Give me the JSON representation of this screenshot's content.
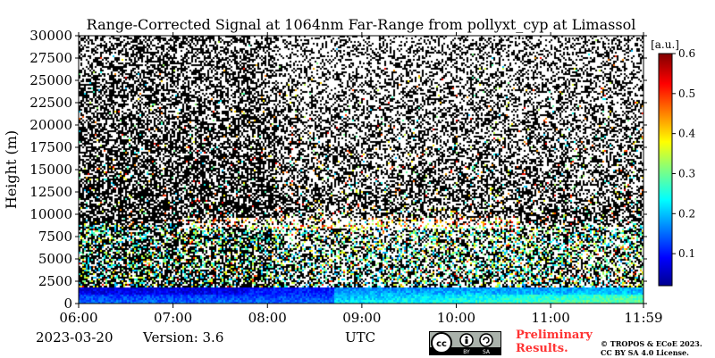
{
  "chart_data": {
    "type": "heatmap",
    "title": "Range-Corrected Signal at 1064nm Far-Range from pollyxt_cyp at Limassol",
    "xlabel": "",
    "ylabel": "Height (m)",
    "x_ticks": [
      "06:00",
      "07:00",
      "08:00",
      "09:00",
      "10:00",
      "11:00",
      "11:59"
    ],
    "x_range": [
      "06:00",
      "11:59"
    ],
    "y_ticks": [
      0,
      2500,
      5000,
      7500,
      10000,
      12500,
      15000,
      17500,
      20000,
      22500,
      25000,
      27500,
      30000
    ],
    "ylim": [
      0,
      30000
    ],
    "colorbar": {
      "unit": "[a.u.]",
      "ticks": [
        0.1,
        0.2,
        0.3,
        0.4,
        0.5,
        0.6
      ],
      "range": [
        0.02,
        0.6
      ],
      "colormap": "jet"
    },
    "features": {
      "cloud_layer_height_m": [
        8500,
        9800
      ],
      "cloud_layer_time": [
        "07:05",
        "10:40"
      ],
      "boundary_layer_top_m": 2000
    }
  },
  "footer": {
    "date": "2023-03-20",
    "version": "Version: 3.6",
    "xaxis_label": "UTC",
    "preliminary": [
      "Preliminary",
      "Results."
    ],
    "copyright": [
      "© TROPOS & ECoE 2023.",
      "CC BY SA 4.0 License."
    ],
    "license_icons": [
      "cc-icon",
      "by-icon",
      "sa-icon"
    ],
    "license_text": [
      "BY",
      "SA"
    ]
  }
}
